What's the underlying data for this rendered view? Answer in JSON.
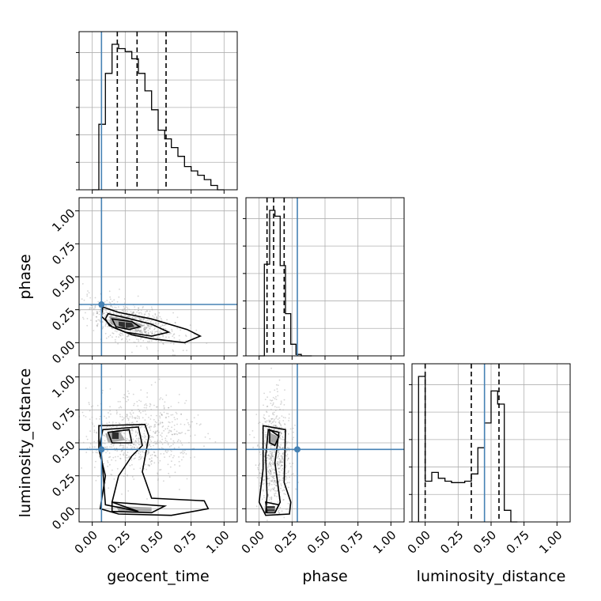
{
  "chart_data": {
    "type": "corner",
    "parameters": [
      "geocent_time",
      "phase",
      "luminosity_distance"
    ],
    "tick_values": [
      0.0,
      0.25,
      0.5,
      0.75,
      1.0
    ],
    "tick_labels": [
      "0.00",
      "0.25",
      "0.50",
      "0.75",
      "1.00"
    ],
    "axis_range": [
      -0.1,
      1.1
    ],
    "truths": {
      "geocent_time": 0.07,
      "phase": 0.29,
      "luminosity_distance": 0.45
    },
    "quantiles": {
      "geocent_time": [
        0.19,
        0.34,
        0.56
      ],
      "phase": [
        0.06,
        0.11,
        0.19
      ],
      "luminosity_distance": [
        0.0,
        0.35,
        0.56
      ]
    },
    "histograms": {
      "geocent_time": {
        "edges": [
          0.0,
          0.05,
          0.1,
          0.15,
          0.2,
          0.25,
          0.3,
          0.35,
          0.4,
          0.45,
          0.5,
          0.55,
          0.6,
          0.65,
          0.7,
          0.75,
          0.8,
          0.85,
          0.9,
          0.95,
          1.0
        ],
        "counts": [
          0.0,
          0.45,
          0.8,
          1.0,
          0.97,
          0.95,
          0.9,
          0.8,
          0.68,
          0.55,
          0.41,
          0.35,
          0.29,
          0.23,
          0.16,
          0.13,
          0.1,
          0.07,
          0.03,
          0.0
        ]
      },
      "phase": {
        "edges": [
          0.0,
          0.04,
          0.08,
          0.12,
          0.16,
          0.2,
          0.24,
          0.28,
          0.32,
          0.36,
          0.4
        ],
        "counts": [
          0.0,
          0.63,
          1.0,
          0.96,
          0.62,
          0.29,
          0.08,
          0.01,
          0.0,
          0.0
        ]
      },
      "luminosity_distance": {
        "edges": [
          -0.05,
          0.0,
          0.05,
          0.1,
          0.15,
          0.2,
          0.25,
          0.3,
          0.35,
          0.4,
          0.45,
          0.5,
          0.55,
          0.6,
          0.65,
          0.7
        ],
        "counts": [
          1.0,
          0.28,
          0.34,
          0.3,
          0.28,
          0.27,
          0.27,
          0.28,
          0.33,
          0.51,
          0.68,
          0.9,
          0.81,
          0.08,
          0.0
        ]
      }
    },
    "panels": [
      {
        "x": "geocent_time",
        "y": "phase",
        "center": [
          0.3,
          0.15
        ],
        "spread": [
          0.18,
          0.07
        ],
        "tilt": -0.25,
        "contours": [
          [
            [
              0.08,
              0.27
            ],
            [
              0.2,
              0.23
            ],
            [
              0.45,
              0.18
            ],
            [
              0.72,
              0.1
            ],
            [
              0.82,
              0.05
            ],
            [
              0.7,
              0.0
            ],
            [
              0.45,
              0.03
            ],
            [
              0.3,
              0.06
            ],
            [
              0.15,
              0.12
            ],
            [
              0.07,
              0.2
            ]
          ],
          [
            [
              0.12,
              0.22
            ],
            [
              0.25,
              0.19
            ],
            [
              0.45,
              0.14
            ],
            [
              0.58,
              0.08
            ],
            [
              0.45,
              0.05
            ],
            [
              0.25,
              0.08
            ],
            [
              0.13,
              0.13
            ],
            [
              0.1,
              0.18
            ]
          ],
          [
            [
              0.15,
              0.18
            ],
            [
              0.3,
              0.16
            ],
            [
              0.36,
              0.12
            ],
            [
              0.28,
              0.1
            ],
            [
              0.18,
              0.12
            ]
          ]
        ],
        "filled_regions": [
          [
            [
              0.13,
              0.2
            ],
            [
              0.25,
              0.18
            ],
            [
              0.4,
              0.13
            ],
            [
              0.25,
              0.1
            ],
            [
              0.14,
              0.14
            ]
          ],
          [
            [
              0.2,
              0.16
            ],
            [
              0.3,
              0.15
            ],
            [
              0.32,
              0.12
            ],
            [
              0.25,
              0.11
            ],
            [
              0.2,
              0.13
            ]
          ]
        ]
      },
      {
        "x": "geocent_time",
        "y": "luminosity_distance",
        "center": [
          0.35,
          0.55
        ],
        "spread": [
          0.2,
          0.15
        ],
        "tilt": 0.0,
        "contours": [
          [
            [
              0.05,
              0.63
            ],
            [
              0.4,
              0.64
            ],
            [
              0.43,
              0.55
            ],
            [
              0.38,
              0.28
            ],
            [
              0.45,
              0.08
            ],
            [
              0.85,
              0.06
            ],
            [
              0.88,
              0.0
            ],
            [
              0.6,
              -0.05
            ],
            [
              0.2,
              -0.04
            ],
            [
              0.06,
              0.0
            ],
            [
              0.1,
              0.25
            ],
            [
              0.05,
              0.45
            ]
          ],
          [
            [
              0.08,
              0.6
            ],
            [
              0.35,
              0.62
            ],
            [
              0.38,
              0.48
            ],
            [
              0.3,
              0.4
            ],
            [
              0.2,
              0.25
            ],
            [
              0.15,
              0.05
            ],
            [
              0.35,
              -0.02
            ],
            [
              0.1,
              0.03
            ],
            [
              0.08,
              0.3
            ],
            [
              0.06,
              0.5
            ]
          ],
          [
            [
              0.12,
              0.58
            ],
            [
              0.28,
              0.6
            ],
            [
              0.3,
              0.5
            ],
            [
              0.15,
              0.5
            ]
          ],
          [
            [
              0.15,
              0.05
            ],
            [
              0.55,
              0.02
            ],
            [
              0.45,
              -0.03
            ],
            [
              0.15,
              -0.02
            ]
          ]
        ],
        "filled_regions": [
          [
            [
              0.1,
              0.57
            ],
            [
              0.2,
              0.6
            ],
            [
              0.25,
              0.52
            ],
            [
              0.12,
              0.5
            ]
          ],
          [
            [
              0.15,
              0.58
            ],
            [
              0.2,
              0.58
            ],
            [
              0.2,
              0.53
            ],
            [
              0.15,
              0.53
            ]
          ],
          [
            [
              0.18,
              0.02
            ],
            [
              0.45,
              0.01
            ],
            [
              0.45,
              -0.02
            ],
            [
              0.2,
              -0.02
            ]
          ]
        ]
      },
      {
        "x": "phase",
        "y": "luminosity_distance",
        "center": [
          0.12,
          0.4
        ],
        "spread": [
          0.06,
          0.2
        ],
        "tilt": 0.0,
        "contours": [
          [
            [
              0.03,
              0.63
            ],
            [
              0.2,
              0.6
            ],
            [
              0.19,
              0.2
            ],
            [
              0.24,
              0.05
            ],
            [
              0.23,
              -0.04
            ],
            [
              0.05,
              -0.05
            ],
            [
              0.0,
              0.05
            ],
            [
              0.03,
              0.3
            ]
          ],
          [
            [
              0.07,
              0.6
            ],
            [
              0.15,
              0.58
            ],
            [
              0.12,
              0.35
            ],
            [
              0.16,
              0.05
            ],
            [
              0.12,
              -0.03
            ],
            [
              0.05,
              -0.03
            ],
            [
              0.06,
              0.1
            ],
            [
              0.05,
              0.4
            ]
          ],
          [
            [
              0.08,
              0.6
            ],
            [
              0.15,
              0.55
            ],
            [
              0.12,
              0.48
            ],
            [
              0.08,
              0.5
            ]
          ],
          [
            [
              0.05,
              0.05
            ],
            [
              0.15,
              0.03
            ],
            [
              0.12,
              -0.03
            ],
            [
              0.06,
              -0.03
            ]
          ]
        ],
        "filled_regions": [
          [
            [
              0.08,
              0.58
            ],
            [
              0.14,
              0.55
            ],
            [
              0.12,
              0.47
            ],
            [
              0.08,
              0.5
            ]
          ],
          [
            [
              0.06,
              0.02
            ],
            [
              0.12,
              0.02
            ],
            [
              0.12,
              -0.02
            ],
            [
              0.06,
              -0.02
            ]
          ]
        ]
      }
    ]
  }
}
